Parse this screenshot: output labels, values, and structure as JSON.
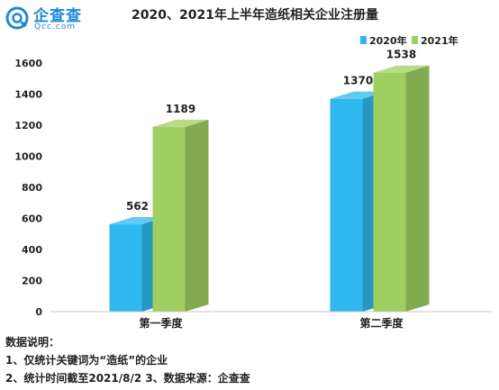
{
  "logo": {
    "brand": "企查查",
    "site": "Qcc.com",
    "icon": "qcc-logo-icon"
  },
  "chart_data": {
    "type": "bar",
    "title": "2020、2021年上半年造纸相关企业注册量",
    "categories": [
      "第一季度",
      "第二季度"
    ],
    "series": [
      {
        "name": "2020年",
        "values": [
          562,
          1370
        ],
        "color": "#2eb8ee"
      },
      {
        "name": "2021年",
        "values": [
          1189,
          1538
        ],
        "color": "#9fcf60"
      }
    ],
    "yticks": [
      0,
      200,
      400,
      600,
      800,
      1000,
      1200,
      1400,
      1600
    ],
    "ylim": [
      0,
      1600
    ],
    "legend_position": "top-right",
    "grid": false,
    "style": "3d"
  },
  "notes": {
    "heading": "数据说明：",
    "line1": "1、仅统计关键词为“造纸”的企业",
    "line2": "2、统计时间截至2021/8/2  3、数据来源：企查查"
  }
}
